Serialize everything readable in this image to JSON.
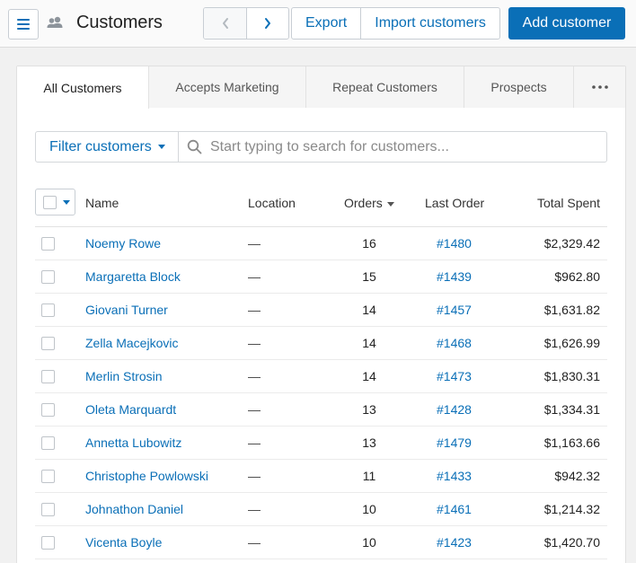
{
  "header": {
    "title": "Customers",
    "export_label": "Export",
    "import_label": "Import customers",
    "add_label": "Add customer"
  },
  "tabs": [
    {
      "label": "All Customers"
    },
    {
      "label": "Accepts Marketing"
    },
    {
      "label": "Repeat Customers"
    },
    {
      "label": "Prospects"
    },
    {
      "label": "•••"
    }
  ],
  "filter": {
    "button_label": "Filter customers",
    "search_placeholder": "Start typing to search for customers..."
  },
  "table": {
    "columns": {
      "name": "Name",
      "location": "Location",
      "orders": "Orders",
      "last_order": "Last Order",
      "total_spent": "Total Spent"
    },
    "rows": [
      {
        "name": "Noemy Rowe",
        "location": "—",
        "orders": "16",
        "last_order": "#1480",
        "total": "$2,329.42"
      },
      {
        "name": "Margaretta Block",
        "location": "—",
        "orders": "15",
        "last_order": "#1439",
        "total": "$962.80"
      },
      {
        "name": "Giovani Turner",
        "location": "—",
        "orders": "14",
        "last_order": "#1457",
        "total": "$1,631.82"
      },
      {
        "name": "Zella Macejkovic",
        "location": "—",
        "orders": "14",
        "last_order": "#1468",
        "total": "$1,626.99"
      },
      {
        "name": "Merlin Strosin",
        "location": "—",
        "orders": "14",
        "last_order": "#1473",
        "total": "$1,830.31"
      },
      {
        "name": "Oleta Marquardt",
        "location": "—",
        "orders": "13",
        "last_order": "#1428",
        "total": "$1,334.31"
      },
      {
        "name": "Annetta Lubowitz",
        "location": "—",
        "orders": "13",
        "last_order": "#1479",
        "total": "$1,163.66"
      },
      {
        "name": "Christophe Powlowski",
        "location": "—",
        "orders": "11",
        "last_order": "#1433",
        "total": "$942.32"
      },
      {
        "name": "Johnathon Daniel",
        "location": "—",
        "orders": "10",
        "last_order": "#1461",
        "total": "$1,214.32"
      },
      {
        "name": "Vicenta Boyle",
        "location": "—",
        "orders": "10",
        "last_order": "#1423",
        "total": "$1,420.70"
      }
    ]
  },
  "colors": {
    "accent": "#0a6fb7",
    "background": "#f1f1f1"
  },
  "icons": {
    "menu": "hamburger-menu-icon",
    "customers": "people-icon",
    "prev": "chevron-left-icon",
    "next": "chevron-right-icon",
    "search": "search-icon",
    "more": "more-dots-icon"
  }
}
